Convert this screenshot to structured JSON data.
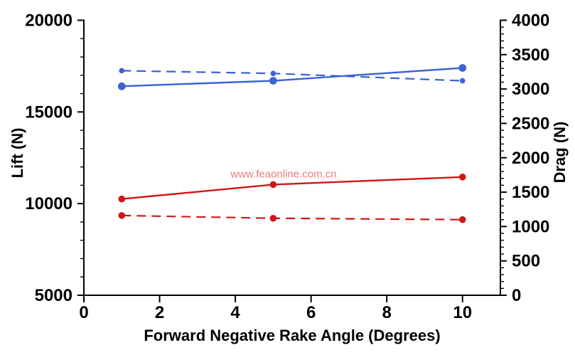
{
  "watermark": {
    "text": "www.feaonline.com.cn",
    "color": "#e87c7c"
  },
  "chart_data": {
    "type": "line",
    "x": [
      1,
      5,
      10
    ],
    "xlabel": "Forward Negative Rake Angle (Degrees)",
    "xlim": [
      0,
      11
    ],
    "x_major_ticks": [
      0,
      2,
      4,
      6,
      8,
      10
    ],
    "grid": false,
    "legend": "none",
    "left_axis": {
      "label": "Lift (N)",
      "lim": [
        5000,
        20000
      ],
      "major_ticks": [
        5000,
        10000,
        15000,
        20000
      ],
      "minor_step": 1000
    },
    "right_axis": {
      "label": "Drag (N)",
      "lim": [
        0,
        4000
      ],
      "major_ticks": [
        0,
        500,
        1000,
        1500,
        2000,
        2500,
        3000,
        3500,
        4000
      ],
      "minor_step": 100
    },
    "series": [
      {
        "name": "lift-solid",
        "axis": "left",
        "style": "solid",
        "color": "#3b63d3",
        "marker_r": 5.4,
        "values": [
          16400,
          16700,
          17400
        ]
      },
      {
        "name": "lift-dashed",
        "axis": "left",
        "style": "dashed",
        "color": "#3b63d3",
        "marker_r": 3.8,
        "values": [
          17250,
          17100,
          16700
        ]
      },
      {
        "name": "drag-solid",
        "axis": "right",
        "style": "solid",
        "color": "#cf1717",
        "marker_r": 4.8,
        "values": [
          1400,
          1610,
          1720
        ]
      },
      {
        "name": "drag-dashed",
        "axis": "right",
        "style": "dashed",
        "color": "#cf1717",
        "marker_r": 4.8,
        "values": [
          1160,
          1120,
          1100
        ]
      }
    ]
  }
}
